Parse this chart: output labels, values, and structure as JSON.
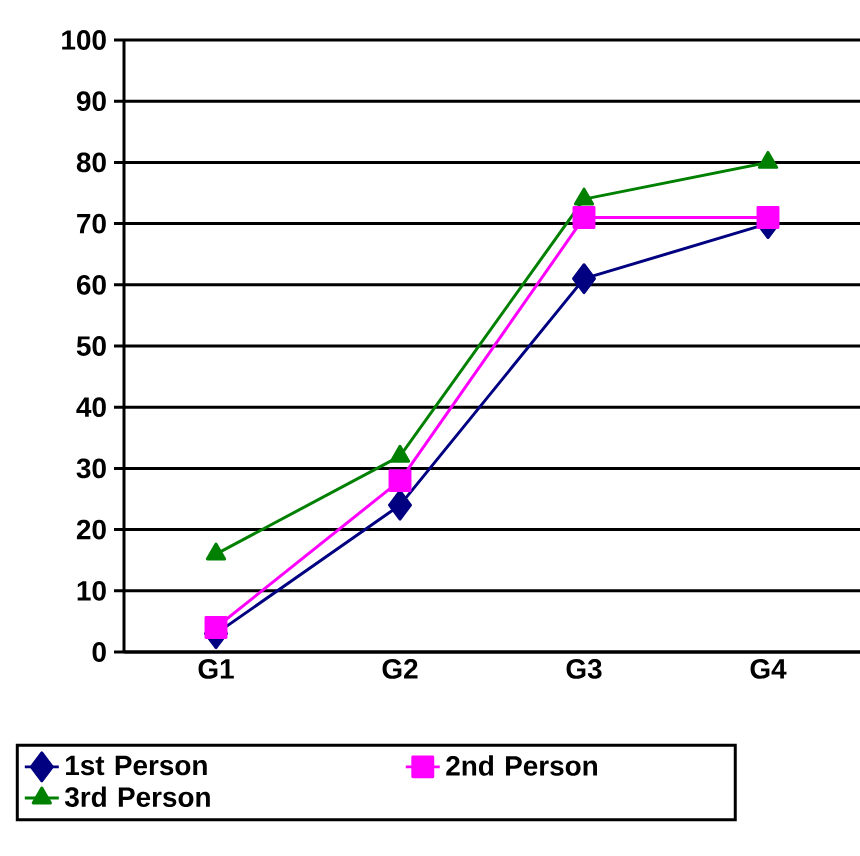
{
  "chart_data": {
    "type": "line",
    "categories": [
      "G1",
      "G2",
      "G3",
      "G4"
    ],
    "series": [
      {
        "name": "1st Person",
        "color": "#000080",
        "marker": "diamond",
        "values": [
          3,
          24,
          61,
          70
        ]
      },
      {
        "name": "2nd Person",
        "color": "#ff00ff",
        "marker": "square",
        "values": [
          4,
          28,
          71,
          71
        ]
      },
      {
        "name": "3rd Person",
        "color": "#008000",
        "marker": "triangle",
        "values": [
          16,
          32,
          74,
          80
        ]
      }
    ],
    "ylim": [
      0,
      100
    ],
    "yticks": [
      0,
      10,
      20,
      30,
      40,
      50,
      60,
      70,
      80,
      90,
      100
    ],
    "grid": "y",
    "legend": "bottom",
    "line_style": "solid"
  }
}
